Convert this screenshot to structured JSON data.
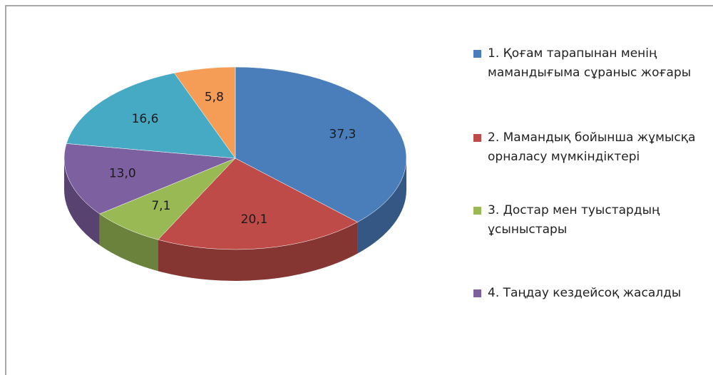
{
  "chart_data": {
    "type": "pie",
    "categories": [
      "1. Қоғам тарапынан менің мамандығыма сұраныс жоғары",
      "2. Мамандық бойынша жұмысқа орналасу мүмкіндіктері",
      "3. Достар мен туыстардың ұсыныстары",
      "4. Таңдау кездейсоқ жасалды",
      null,
      null
    ],
    "values": [
      37.3,
      20.1,
      7.1,
      13.0,
      16.6,
      5.8
    ],
    "value_labels": [
      "37,3",
      "20,1",
      "7,1",
      "13,0",
      "16,6",
      "5,8"
    ],
    "colors": [
      "#4a7ebb",
      "#be4b48",
      "#98b954",
      "#7d60a0",
      "#46aac5",
      "#f59d56"
    ],
    "legend": "right"
  }
}
